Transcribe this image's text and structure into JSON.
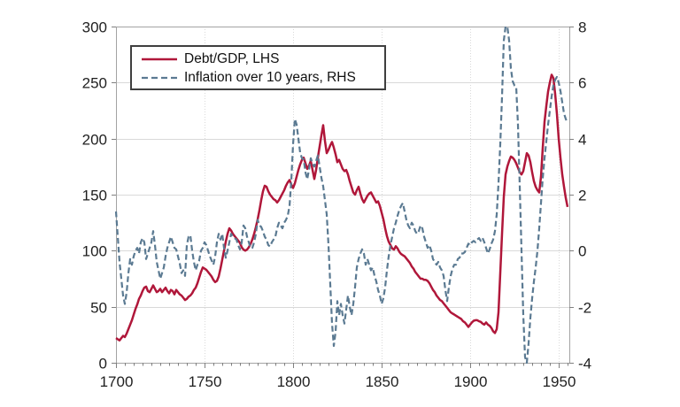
{
  "chart": {
    "legend": {
      "position": "top-left",
      "items": [
        {
          "label": "Debt/GDP, LHS",
          "color": "#b0173a",
          "line_style": "solid"
        },
        {
          "label": "Inflation over 10 years, RHS",
          "color": "#5b7a92",
          "line_style": "dashed"
        }
      ]
    },
    "colors": {
      "background": "#ffffff",
      "grid": "#d9d9d9",
      "spine": "#a3a3a3",
      "tick": "#808080",
      "label": "#1f1f1f",
      "debt_line": "#b0173a",
      "inflation_line": "#5b7a92"
    }
  },
  "chart_data": {
    "type": "line",
    "title": "",
    "xlabel": "",
    "ylabel_left": "",
    "ylabel_right": "",
    "grid": {
      "horizontal": true,
      "vertical": true
    },
    "legend_position": "top-left",
    "x_start": 1700,
    "x_step": 1,
    "xlim": [
      1700,
      1956
    ],
    "x_major_ticks": [
      1700,
      1750,
      1800,
      1850,
      1900,
      1950
    ],
    "x_minor_tick_step": 5,
    "left_axis": {
      "lim": [
        0,
        300
      ],
      "ticks": [
        0,
        50,
        100,
        150,
        200,
        250,
        300
      ]
    },
    "right_axis": {
      "lim": [
        -4,
        8
      ],
      "ticks": [
        -4,
        -2,
        0,
        2,
        4,
        6,
        8
      ]
    },
    "series": [
      {
        "name": "Debt/GDP, LHS",
        "axis": "left",
        "color": "#b0173a",
        "line_style": "solid",
        "values": [
          22,
          21,
          20,
          22,
          24,
          23,
          26,
          30,
          34,
          38,
          43,
          48,
          52,
          57,
          60,
          64,
          67,
          68,
          64,
          63,
          66,
          69,
          66,
          63,
          64,
          66,
          63,
          65,
          67,
          64,
          62,
          65,
          64,
          61,
          65,
          63,
          61,
          60,
          58,
          56,
          57,
          59,
          60,
          62,
          65,
          67,
          71,
          76,
          81,
          85,
          84,
          83,
          81,
          79,
          77,
          74,
          72,
          73,
          77,
          84,
          92,
          100,
          108,
          115,
          120,
          118,
          115,
          113,
          111,
          109,
          107,
          103,
          101,
          100,
          101,
          103,
          106,
          110,
          115,
          121,
          128,
          136,
          145,
          153,
          158,
          157,
          153,
          150,
          148,
          146,
          145,
          143,
          145,
          148,
          151,
          154,
          158,
          161,
          163,
          159,
          156,
          160,
          166,
          172,
          177,
          181,
          183,
          178,
          173,
          176,
          180,
          172,
          164,
          172,
          183,
          193,
          203,
          212,
          198,
          187,
          190,
          194,
          197,
          192,
          186,
          179,
          181,
          177,
          173,
          171,
          172,
          168,
          162,
          157,
          152,
          150,
          154,
          157,
          151,
          146,
          143,
          146,
          149,
          151,
          152,
          149,
          146,
          143,
          144,
          140,
          134,
          128,
          120,
          113,
          108,
          105,
          102,
          101,
          104,
          102,
          99,
          97,
          96,
          95,
          93,
          91,
          89,
          86,
          84,
          81,
          79,
          77,
          75,
          75,
          74,
          74,
          73,
          71,
          68,
          65,
          63,
          60,
          58,
          56,
          55,
          53,
          51,
          49,
          47,
          45,
          44,
          43,
          42,
          41,
          40,
          39,
          37,
          36,
          34,
          32,
          34,
          36,
          37.5,
          38,
          38,
          37,
          36.5,
          35,
          34,
          36,
          34,
          33,
          31,
          28,
          26.5,
          30,
          45,
          80,
          115,
          148,
          168,
          175,
          180,
          184,
          183,
          181,
          178,
          174,
          170,
          168,
          171,
          179,
          187,
          185,
          179,
          170,
          162,
          157,
          154,
          152,
          166,
          192,
          215,
          229,
          242,
          250,
          257,
          254,
          240,
          222,
          200,
          183,
          168,
          157,
          147,
          139
        ]
      },
      {
        "name": "Inflation over 10 years, RHS",
        "axis": "right",
        "color": "#5b7a92",
        "line_style": "dashed",
        "values": [
          1.4,
          0.5,
          -0.4,
          -1.0,
          -1.6,
          -1.9,
          -1.5,
          -0.8,
          -0.3,
          -0.5,
          -0.2,
          0.0,
          0.1,
          -0.1,
          0.3,
          0.45,
          0.3,
          -0.3,
          -0.1,
          0.1,
          0.3,
          0.7,
          0.2,
          -0.4,
          -0.7,
          -1.0,
          -0.8,
          -0.6,
          -0.2,
          0.1,
          0.3,
          0.5,
          0.3,
          0.1,
          0.05,
          -0.2,
          -0.45,
          -0.8,
          -0.7,
          -0.9,
          0.2,
          0.5,
          0.55,
          0.0,
          -0.4,
          -0.7,
          -0.5,
          -0.35,
          0.0,
          0.1,
          0.3,
          0.2,
          0.0,
          -0.2,
          -0.35,
          -0.5,
          -0.2,
          0.3,
          0.6,
          0.4,
          0.6,
          0.1,
          -0.25,
          0.0,
          0.3,
          0.6,
          0.5,
          0.45,
          0.4,
          0.2,
          0.05,
          0.3,
          0.9,
          0.8,
          0.5,
          0.3,
          0.1,
          0.1,
          0.3,
          0.6,
          1.1,
          0.9,
          0.85,
          0.7,
          0.5,
          0.4,
          0.2,
          0.15,
          0.3,
          0.4,
          0.5,
          0.8,
          1.0,
          0.9,
          0.8,
          1.0,
          1.1,
          1.25,
          1.6,
          2.5,
          3.8,
          4.7,
          4.5,
          4.0,
          3.5,
          3.3,
          3.25,
          2.8,
          2.55,
          2.9,
          3.3,
          3.1,
          3.0,
          3.2,
          3.4,
          3.0,
          2.6,
          2.3,
          1.8,
          1.3,
          0.2,
          -1.2,
          -2.6,
          -3.4,
          -2.9,
          -1.8,
          -2.3,
          -1.9,
          -2.3,
          -2.6,
          -2.1,
          -1.6,
          -2.0,
          -2.3,
          -1.9,
          -1.3,
          -0.6,
          -0.3,
          -0.1,
          0.05,
          -0.1,
          -0.5,
          -0.3,
          -0.5,
          -0.7,
          -0.6,
          -0.9,
          -1.1,
          -1.4,
          -1.6,
          -1.9,
          -1.7,
          -1.3,
          -0.7,
          -0.2,
          0.2,
          0.5,
          0.8,
          1.0,
          1.25,
          1.45,
          1.6,
          1.7,
          1.4,
          1.1,
          0.9,
          0.8,
          1.0,
          0.9,
          0.7,
          0.6,
          0.7,
          0.9,
          0.8,
          0.5,
          0.3,
          0.1,
          0.2,
          0.0,
          -0.3,
          -0.4,
          -0.5,
          -0.4,
          -0.6,
          -0.7,
          -0.9,
          -1.4,
          -1.8,
          -1.3,
          -0.9,
          -0.65,
          -0.5,
          -0.5,
          -0.3,
          -0.25,
          -0.1,
          -0.1,
          -0.05,
          0.1,
          0.25,
          0.2,
          0.3,
          0.35,
          0.3,
          0.4,
          0.45,
          0.35,
          0.45,
          0.3,
          0.1,
          -0.1,
          0.05,
          0.25,
          0.4,
          0.7,
          1.3,
          2.4,
          3.8,
          5.5,
          7.5,
          8.0,
          8.0,
          7.5,
          6.5,
          6.05,
          5.9,
          5.85,
          4.5,
          2.3,
          0.0,
          -2.3,
          -3.8,
          -4.0,
          -3.3,
          -2.4,
          -1.7,
          -1.1,
          -0.6,
          0.0,
          0.8,
          1.7,
          2.6,
          3.3,
          3.9,
          4.5,
          5.0,
          5.5,
          5.9,
          6.1,
          6.2,
          6.0,
          5.7,
          5.3,
          4.9,
          4.7,
          4.55
        ]
      }
    ]
  }
}
